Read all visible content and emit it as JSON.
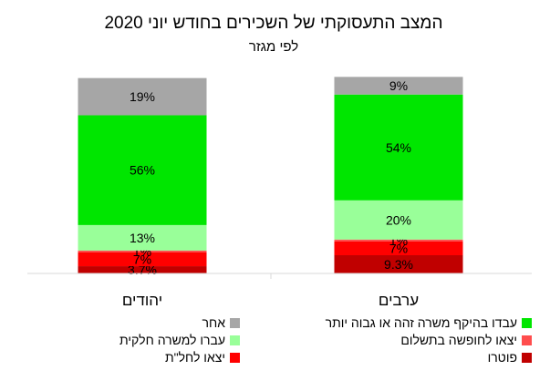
{
  "chart_data": {
    "type": "bar",
    "stacked": true,
    "title": "המצב התעסוקתי של השכירים בחודש יוני 2020",
    "subtitle": "לפי מגזר",
    "categories": [
      "ערבים",
      "יהודים"
    ],
    "series": [
      {
        "name": "פוטרו",
        "values": [
          9.3,
          3.7
        ],
        "labels": [
          "9.3%",
          "3.7%"
        ],
        "color": "#c00000"
      },
      {
        "name": "יצאו לחל\"ת",
        "values": [
          7,
          7
        ],
        "labels": [
          "7%",
          "7%"
        ],
        "color": "#ff0000"
      },
      {
        "name": "יצאו לחופשה בתשלום",
        "values": [
          1,
          1
        ],
        "labels": [
          "1%",
          "1%"
        ],
        "color": "#ff4d4d"
      },
      {
        "name": "עברו למשרה חלקית",
        "values": [
          20,
          13
        ],
        "labels": [
          "20%",
          "13%"
        ],
        "color": "#99ff99"
      },
      {
        "name": "עבדו בהיקף משרה זהה או גבוה יותר",
        "values": [
          54,
          56
        ],
        "labels": [
          "54%",
          "56%"
        ],
        "color": "#00e600"
      },
      {
        "name": "אחר",
        "values": [
          9,
          19
        ],
        "labels": [
          "9%",
          "19%"
        ],
        "color": "#a6a6a6"
      }
    ],
    "ylim": [
      0,
      100
    ],
    "legend_position": "bottom",
    "grid": false
  }
}
